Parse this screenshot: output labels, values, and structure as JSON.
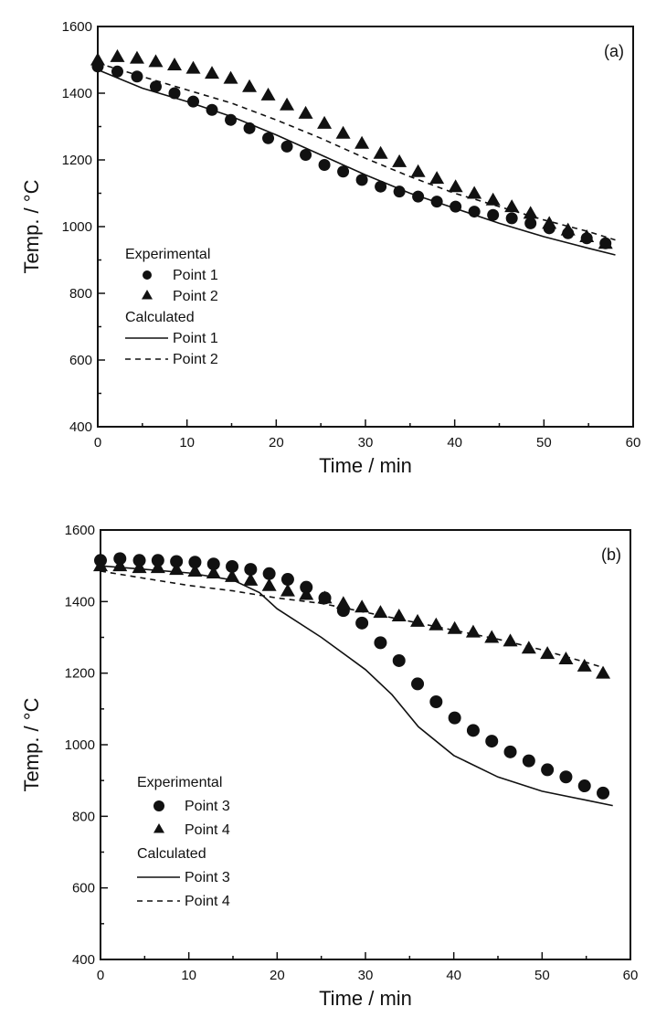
{
  "chart_data": [
    {
      "type": "line",
      "panel_label": "(a)",
      "xlabel": "Time / min",
      "ylabel": "Temp. / °C",
      "xlim": [
        0,
        60
      ],
      "ylim": [
        400,
        1600
      ],
      "xticks": [
        "0",
        "10",
        "20",
        "30",
        "40",
        "50",
        "60"
      ],
      "yticks": [
        "400",
        "600",
        "800",
        "1000",
        "1200",
        "1400",
        "1600"
      ],
      "grid": false,
      "legend_position": "center-left",
      "legend": {
        "experimental_title": "Experimental",
        "calculated_title": "Calculated",
        "items": [
          {
            "group": "Experimental",
            "marker": "circle",
            "label": "Point 1"
          },
          {
            "group": "Experimental",
            "marker": "triangle",
            "label": "Point 2"
          },
          {
            "group": "Calculated",
            "line": "solid",
            "label": "Point 1"
          },
          {
            "group": "Calculated",
            "line": "dashed",
            "label": "Point 2"
          }
        ]
      },
      "series": [
        {
          "name": "Experimental Point 1",
          "kind": "scatter",
          "marker": "circle",
          "x": [
            0,
            2.2,
            4.4,
            6.5,
            8.6,
            10.7,
            12.8,
            14.9,
            17,
            19.1,
            21.2,
            23.3,
            25.4,
            27.5,
            29.6,
            31.7,
            33.8,
            35.9,
            38,
            40.1,
            42.2,
            44.3,
            46.4,
            48.5,
            50.6,
            52.7,
            54.8,
            56.9
          ],
          "y": [
            1480,
            1465,
            1450,
            1420,
            1400,
            1375,
            1350,
            1320,
            1295,
            1265,
            1240,
            1215,
            1185,
            1165,
            1140,
            1120,
            1105,
            1090,
            1075,
            1060,
            1045,
            1035,
            1025,
            1010,
            995,
            980,
            965,
            950
          ]
        },
        {
          "name": "Experimental Point 2",
          "kind": "scatter",
          "marker": "triangle",
          "x": [
            0,
            2.2,
            4.4,
            6.5,
            8.6,
            10.7,
            12.8,
            14.9,
            17,
            19.1,
            21.2,
            23.3,
            25.4,
            27.5,
            29.6,
            31.7,
            33.8,
            35.9,
            38,
            40.1,
            42.2,
            44.3,
            46.4,
            48.5,
            50.6,
            52.7,
            54.8,
            56.9
          ],
          "y": [
            1500,
            1510,
            1505,
            1495,
            1485,
            1475,
            1460,
            1445,
            1420,
            1395,
            1365,
            1340,
            1310,
            1280,
            1250,
            1220,
            1195,
            1165,
            1145,
            1120,
            1100,
            1080,
            1060,
            1040,
            1010,
            990,
            970,
            950
          ]
        },
        {
          "name": "Calculated Point 1",
          "kind": "line",
          "style": "solid",
          "x": [
            0,
            5,
            10,
            15,
            20,
            25,
            30,
            35,
            40,
            45,
            50,
            55,
            58
          ],
          "y": [
            1470,
            1415,
            1375,
            1330,
            1275,
            1215,
            1155,
            1100,
            1055,
            1010,
            970,
            935,
            915
          ]
        },
        {
          "name": "Calculated Point 2",
          "kind": "line",
          "style": "dashed",
          "x": [
            0,
            5,
            10,
            15,
            20,
            25,
            30,
            35,
            40,
            45,
            50,
            55,
            58
          ],
          "y": [
            1490,
            1450,
            1410,
            1370,
            1320,
            1265,
            1205,
            1150,
            1100,
            1060,
            1020,
            985,
            960
          ]
        }
      ]
    },
    {
      "type": "line",
      "panel_label": "(b)",
      "xlabel": "Time / min",
      "ylabel": "Temp. / °C",
      "xlim": [
        0,
        60
      ],
      "ylim": [
        400,
        1600
      ],
      "xticks": [
        "0",
        "10",
        "20",
        "30",
        "40",
        "50",
        "60"
      ],
      "yticks": [
        "400",
        "600",
        "800",
        "1000",
        "1200",
        "1400",
        "1600"
      ],
      "grid": false,
      "legend_position": "center-left",
      "legend": {
        "experimental_title": "Experimental",
        "calculated_title": "Calculated",
        "items": [
          {
            "group": "Experimental",
            "marker": "circle",
            "label": "Point 3"
          },
          {
            "group": "Experimental",
            "marker": "triangle",
            "label": "Point 4"
          },
          {
            "group": "Calculated",
            "line": "solid",
            "label": "Point 3"
          },
          {
            "group": "Calculated",
            "line": "dashed",
            "label": "Point 4"
          }
        ]
      },
      "series": [
        {
          "name": "Experimental Point 3",
          "kind": "scatter",
          "marker": "circle",
          "x": [
            0,
            2.2,
            4.4,
            6.5,
            8.6,
            10.7,
            12.8,
            14.9,
            17,
            19.1,
            21.2,
            23.3,
            25.4,
            27.5,
            29.6,
            31.7,
            33.8,
            35.9,
            38,
            40.1,
            42.2,
            44.3,
            46.4,
            48.5,
            50.6,
            52.7,
            54.8,
            56.9
          ],
          "y": [
            1515,
            1520,
            1515,
            1515,
            1512,
            1510,
            1505,
            1498,
            1490,
            1478,
            1462,
            1440,
            1410,
            1375,
            1340,
            1285,
            1235,
            1170,
            1120,
            1075,
            1040,
            1010,
            980,
            955,
            930,
            910,
            885,
            865
          ]
        },
        {
          "name": "Experimental Point 4",
          "kind": "scatter",
          "marker": "triangle",
          "x": [
            0,
            2.2,
            4.4,
            6.5,
            8.6,
            10.7,
            12.8,
            14.9,
            17,
            19.1,
            21.2,
            23.3,
            25.4,
            27.5,
            29.6,
            31.7,
            33.8,
            35.9,
            38,
            40.1,
            42.2,
            44.3,
            46.4,
            48.5,
            50.6,
            52.7,
            54.8,
            56.9
          ],
          "y": [
            1500,
            1500,
            1495,
            1495,
            1490,
            1485,
            1480,
            1470,
            1460,
            1445,
            1430,
            1420,
            1410,
            1395,
            1385,
            1370,
            1360,
            1345,
            1335,
            1325,
            1315,
            1300,
            1290,
            1270,
            1255,
            1240,
            1220,
            1200
          ]
        },
        {
          "name": "Calculated Point 3",
          "kind": "line",
          "style": "solid",
          "x": [
            0,
            5,
            10,
            15,
            18,
            20,
            25,
            30,
            33,
            36,
            40,
            45,
            50,
            55,
            58
          ],
          "y": [
            1500,
            1490,
            1480,
            1460,
            1425,
            1380,
            1300,
            1210,
            1140,
            1050,
            970,
            910,
            870,
            845,
            830
          ]
        },
        {
          "name": "Calculated Point 4",
          "kind": "line",
          "style": "dashed",
          "x": [
            0,
            5,
            10,
            15,
            20,
            25,
            30,
            35,
            40,
            45,
            50,
            55,
            57
          ],
          "y": [
            1485,
            1465,
            1445,
            1430,
            1410,
            1395,
            1370,
            1345,
            1320,
            1295,
            1265,
            1230,
            1215
          ]
        }
      ]
    }
  ]
}
